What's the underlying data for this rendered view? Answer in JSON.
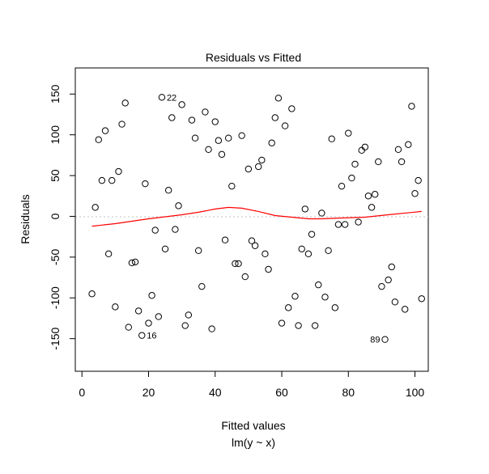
{
  "chart_data": {
    "type": "scatter",
    "title": "Residuals vs Fitted",
    "xlabel": "Fitted values",
    "subtitle": "lm(y ~ x)",
    "ylabel": "Residuals",
    "xlim": [
      -2,
      104
    ],
    "ylim": [
      -190,
      182
    ],
    "x_ticks": [
      0,
      20,
      40,
      60,
      80,
      100
    ],
    "y_ticks": [
      -150,
      -100,
      -50,
      0,
      50,
      100,
      150
    ],
    "grid": false,
    "point_style": "open-circle",
    "reference_line_y": 0,
    "colors": {
      "points": "#000000",
      "smooth": "#ff0000",
      "reference": "#c0c0c0",
      "frame": "#000000"
    },
    "points": [
      {
        "x": 3,
        "y": -95
      },
      {
        "x": 4,
        "y": 11
      },
      {
        "x": 5,
        "y": 94
      },
      {
        "x": 6,
        "y": 44
      },
      {
        "x": 7,
        "y": 105
      },
      {
        "x": 8,
        "y": -46
      },
      {
        "x": 9,
        "y": 44
      },
      {
        "x": 10,
        "y": -111
      },
      {
        "x": 11,
        "y": 55
      },
      {
        "x": 12,
        "y": 113
      },
      {
        "x": 13,
        "y": 139
      },
      {
        "x": 14,
        "y": -136
      },
      {
        "x": 15,
        "y": -57
      },
      {
        "x": 16,
        "y": -56
      },
      {
        "x": 17,
        "y": -116
      },
      {
        "x": 18,
        "y": -146
      },
      {
        "x": 19,
        "y": 40
      },
      {
        "x": 20,
        "y": -131
      },
      {
        "x": 21,
        "y": -97
      },
      {
        "x": 22,
        "y": -17
      },
      {
        "x": 23,
        "y": -123
      },
      {
        "x": 24,
        "y": 146
      },
      {
        "x": 25,
        "y": -40
      },
      {
        "x": 26,
        "y": 32
      },
      {
        "x": 27,
        "y": 121
      },
      {
        "x": 28,
        "y": -16
      },
      {
        "x": 29,
        "y": 13
      },
      {
        "x": 30,
        "y": 137
      },
      {
        "x": 31,
        "y": -134
      },
      {
        "x": 32,
        "y": -121
      },
      {
        "x": 33,
        "y": 118
      },
      {
        "x": 34,
        "y": 96
      },
      {
        "x": 35,
        "y": -42
      },
      {
        "x": 36,
        "y": -86
      },
      {
        "x": 37,
        "y": 128
      },
      {
        "x": 38,
        "y": 82
      },
      {
        "x": 39,
        "y": -138
      },
      {
        "x": 40,
        "y": 116
      },
      {
        "x": 41,
        "y": 93
      },
      {
        "x": 42,
        "y": 76
      },
      {
        "x": 43,
        "y": -29
      },
      {
        "x": 44,
        "y": 96
      },
      {
        "x": 45,
        "y": 37
      },
      {
        "x": 46,
        "y": -58
      },
      {
        "x": 47,
        "y": -58
      },
      {
        "x": 48,
        "y": 99
      },
      {
        "x": 49,
        "y": -74
      },
      {
        "x": 50,
        "y": 58
      },
      {
        "x": 51,
        "y": -30
      },
      {
        "x": 52,
        "y": -36
      },
      {
        "x": 53,
        "y": 61
      },
      {
        "x": 54,
        "y": 69
      },
      {
        "x": 55,
        "y": -46
      },
      {
        "x": 56,
        "y": -65
      },
      {
        "x": 57,
        "y": 90
      },
      {
        "x": 58,
        "y": 121
      },
      {
        "x": 59,
        "y": 145
      },
      {
        "x": 60,
        "y": -131
      },
      {
        "x": 61,
        "y": 111
      },
      {
        "x": 62,
        "y": -112
      },
      {
        "x": 63,
        "y": 132
      },
      {
        "x": 64,
        "y": -98
      },
      {
        "x": 65,
        "y": -134
      },
      {
        "x": 66,
        "y": -40
      },
      {
        "x": 67,
        "y": 9
      },
      {
        "x": 68,
        "y": -46
      },
      {
        "x": 69,
        "y": -22
      },
      {
        "x": 70,
        "y": -134
      },
      {
        "x": 71,
        "y": -84
      },
      {
        "x": 72,
        "y": 4
      },
      {
        "x": 73,
        "y": -99
      },
      {
        "x": 74,
        "y": -42
      },
      {
        "x": 75,
        "y": 95
      },
      {
        "x": 76,
        "y": -112
      },
      {
        "x": 77,
        "y": -10
      },
      {
        "x": 78,
        "y": 37
      },
      {
        "x": 79,
        "y": -10
      },
      {
        "x": 80,
        "y": 102
      },
      {
        "x": 81,
        "y": 47
      },
      {
        "x": 82,
        "y": 64
      },
      {
        "x": 83,
        "y": -7
      },
      {
        "x": 84,
        "y": 81
      },
      {
        "x": 85,
        "y": 85
      },
      {
        "x": 86,
        "y": 25
      },
      {
        "x": 87,
        "y": 11
      },
      {
        "x": 88,
        "y": 27
      },
      {
        "x": 89,
        "y": 67
      },
      {
        "x": 90,
        "y": -86
      },
      {
        "x": 91,
        "y": -151
      },
      {
        "x": 92,
        "y": -78
      },
      {
        "x": 93,
        "y": -62
      },
      {
        "x": 94,
        "y": -105
      },
      {
        "x": 95,
        "y": 82
      },
      {
        "x": 96,
        "y": 67
      },
      {
        "x": 97,
        "y": -114
      },
      {
        "x": 98,
        "y": 88
      },
      {
        "x": 99,
        "y": 135
      },
      {
        "x": 100,
        "y": 28
      },
      {
        "x": 101,
        "y": 44
      },
      {
        "x": 102,
        "y": -101
      }
    ],
    "labeled_points": [
      {
        "label": "22",
        "x": 24,
        "y": 146,
        "side": "right"
      },
      {
        "label": "16",
        "x": 18,
        "y": -146,
        "side": "right"
      },
      {
        "label": "89",
        "x": 91,
        "y": -151,
        "side": "left"
      }
    ],
    "smooth_line": [
      {
        "x": 3,
        "y": -12
      },
      {
        "x": 10,
        "y": -9
      },
      {
        "x": 20,
        "y": -3
      },
      {
        "x": 30,
        "y": 2
      },
      {
        "x": 35,
        "y": 5
      },
      {
        "x": 40,
        "y": 9
      },
      {
        "x": 44,
        "y": 11
      },
      {
        "x": 48,
        "y": 10
      },
      {
        "x": 53,
        "y": 6
      },
      {
        "x": 58,
        "y": 1
      },
      {
        "x": 63,
        "y": -1
      },
      {
        "x": 68,
        "y": -3
      },
      {
        "x": 72,
        "y": -3
      },
      {
        "x": 78,
        "y": -2
      },
      {
        "x": 85,
        "y": -1
      },
      {
        "x": 92,
        "y": 2
      },
      {
        "x": 102,
        "y": 6
      }
    ]
  }
}
